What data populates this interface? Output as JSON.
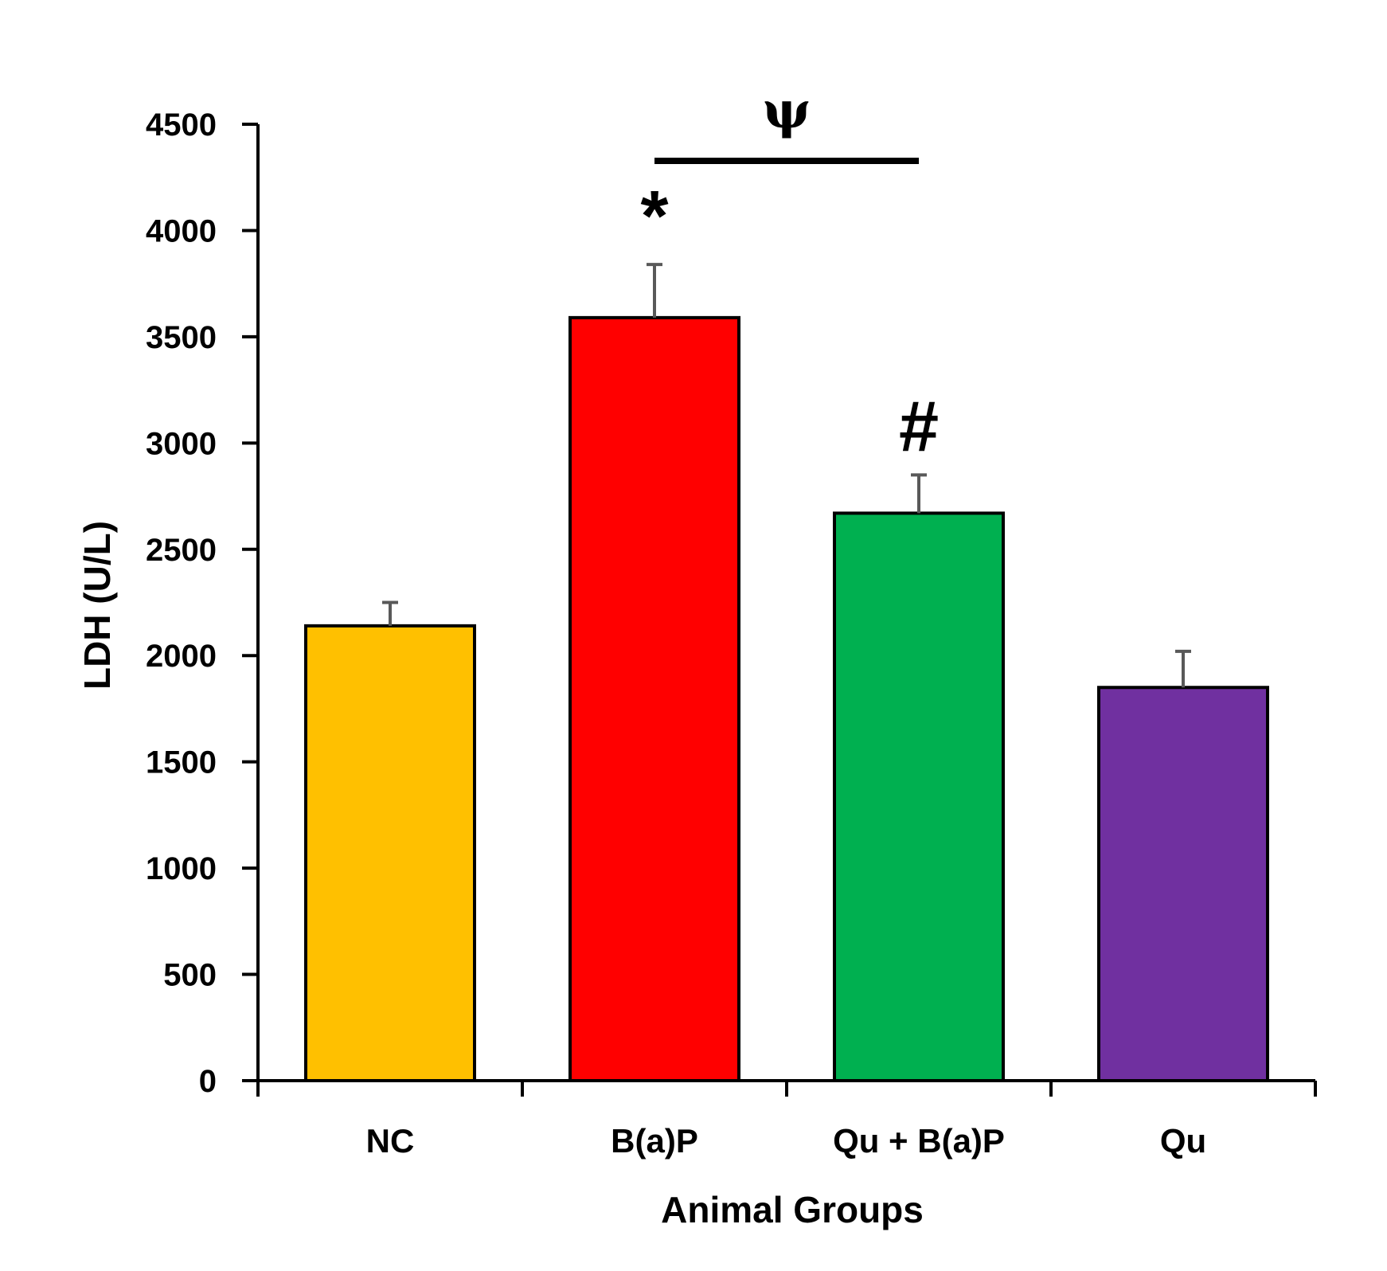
{
  "chart_data": {
    "type": "bar",
    "title": "",
    "xlabel": "Animal Groups",
    "ylabel": "LDH (U/L)",
    "ylim": [
      0,
      4500
    ],
    "yticks": [
      0,
      500,
      1000,
      1500,
      2000,
      2500,
      3000,
      3500,
      4000,
      4500
    ],
    "yticks_labels": [
      "0",
      "500",
      "1000",
      "1500",
      "2000",
      "2500",
      "3000",
      "3500",
      "4000",
      "4500"
    ],
    "categories": [
      "NC",
      "B(a)P",
      "Qu + B(a)P",
      "Qu"
    ],
    "values": [
      2140,
      3590,
      2670,
      1850
    ],
    "errors": [
      110,
      250,
      180,
      170
    ],
    "colors": [
      "#FFC000",
      "#FF0000",
      "#00B050",
      "#7030A0"
    ],
    "significance": [
      {
        "category": "B(a)P",
        "symbol": "*"
      },
      {
        "category": "Qu + B(a)P",
        "symbol": "#"
      }
    ],
    "bracket": {
      "from": "B(a)P",
      "to": "Qu + B(a)P",
      "symbol": "ψ"
    },
    "grid": false,
    "legend": "none"
  }
}
